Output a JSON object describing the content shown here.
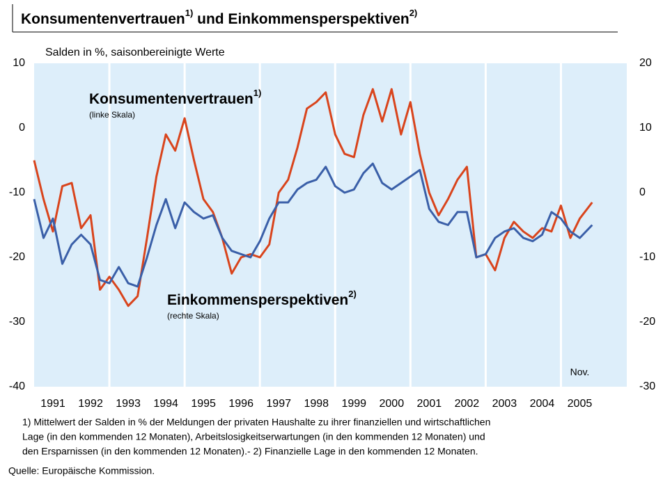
{
  "chart_data": {
    "type": "line",
    "title": [
      "Konsumentenvertrauen",
      "1)",
      " und Einkommensperspektiven",
      "2)"
    ],
    "subtitle": "Salden in %, saisonbereinigte Werte",
    "annotation": "Nov.",
    "x": [
      1991,
      1991.25,
      1991.5,
      1991.75,
      1992,
      1992.25,
      1992.5,
      1992.75,
      1993,
      1993.25,
      1993.5,
      1993.75,
      1994,
      1994.25,
      1994.5,
      1994.75,
      1995,
      1995.25,
      1995.5,
      1995.75,
      1996,
      1996.25,
      1996.5,
      1996.75,
      1997,
      1997.25,
      1997.5,
      1997.75,
      1998,
      1998.25,
      1998.5,
      1998.75,
      1999,
      1999.25,
      1999.5,
      1999.75,
      2000,
      2000.25,
      2000.5,
      2000.75,
      2001,
      2001.25,
      2001.5,
      2001.75,
      2002,
      2002.25,
      2002.5,
      2002.75,
      2003,
      2003.25,
      2003.5,
      2003.75,
      2004,
      2004.25,
      2004.5,
      2004.75,
      2005,
      2005.25,
      2005.5,
      2005.83
    ],
    "xlim": [
      1991,
      2006.75
    ],
    "xticks": [
      {
        "value": 1991.5,
        "label": "1991"
      },
      {
        "value": 1992.5,
        "label": "1992"
      },
      {
        "value": 1993.5,
        "label": "1993"
      },
      {
        "value": 1994.5,
        "label": "1994"
      },
      {
        "value": 1995.5,
        "label": "1995"
      },
      {
        "value": 1996.5,
        "label": "1996"
      },
      {
        "value": 1997.5,
        "label": "1997"
      },
      {
        "value": 1998.5,
        "label": "1998"
      },
      {
        "value": 1999.5,
        "label": "1999"
      },
      {
        "value": 2000.5,
        "label": "2000"
      },
      {
        "value": 2001.5,
        "label": "2001"
      },
      {
        "value": 2002.5,
        "label": "2002"
      },
      {
        "value": 2003.5,
        "label": "2003"
      },
      {
        "value": 2004.5,
        "label": "2004"
      },
      {
        "value": 2005.5,
        "label": "2005"
      }
    ],
    "ylim": [
      -40,
      10
    ],
    "yticks": [
      10,
      0,
      -10,
      -20,
      -30,
      -40
    ],
    "y2lim": [
      -30,
      20
    ],
    "y2ticks": [
      20,
      10,
      0,
      -10,
      -20,
      -30
    ],
    "background": "#ddeefa",
    "series": [
      {
        "name": "Konsumentenvertrauen",
        "note": "1)",
        "scale": "(linke Skala)",
        "color": "#d9441c",
        "values": [
          -5,
          -11,
          -16,
          -9,
          -8.5,
          -15.5,
          -13.5,
          -25,
          -23,
          -25,
          -27.5,
          -26,
          -17,
          -7.5,
          -1,
          -3.5,
          1.5,
          -5,
          -11,
          -13,
          -17,
          -22.5,
          -20,
          -19.5,
          -20,
          -18,
          -10,
          -8,
          -3,
          3,
          4,
          5.5,
          -1,
          -4,
          -4.5,
          2,
          6,
          1,
          6,
          -1,
          4,
          -4,
          -10,
          -13.5,
          -11,
          -8,
          -6,
          -20,
          -19.5,
          -22,
          -17,
          -14.5,
          -16,
          -17,
          -15.5,
          -16,
          -12,
          -17,
          -14,
          -11.5
        ]
      },
      {
        "name": "Einkommensperspektiven",
        "note": "2)",
        "scale": "(rechte Skala)",
        "color": "#3a5fa8",
        "axis": "y2",
        "values": [
          -1,
          -7,
          -4,
          -11,
          -8,
          -6.5,
          -8,
          -13.5,
          -14,
          -11.5,
          -14,
          -14.5,
          -10,
          -5,
          -1,
          -5.5,
          -1.5,
          -3,
          -4,
          -3.5,
          -7,
          -9,
          -9.5,
          -10,
          -7.5,
          -4,
          -1.5,
          -1.5,
          0.5,
          1.5,
          2,
          4,
          1,
          0,
          0.5,
          3,
          4.5,
          1.5,
          0.5,
          1.5,
          2.5,
          3.5,
          -2.5,
          -4.5,
          -5,
          -3,
          -3,
          -10,
          -9.5,
          -7,
          -6,
          -5.5,
          -7,
          -7.5,
          -6.5,
          -3,
          -4,
          -6,
          -7,
          -5
        ]
      }
    ],
    "footnotes": [
      "1) Mittelwert der Salden in % der Meldungen der privaten Haushalte zu ihrer finanziellen und wirtschaftlichen",
      "Lage (in den kommenden 12 Monaten), Arbeitslosigkeitserwartungen (in den kommenden 12 Monaten) und",
      "den Ersparnissen (in den kommenden 12 Monaten).- 2) Finanzielle Lage in den kommenden 12 Monaten."
    ],
    "source": "Quelle: Europäische Kommission."
  }
}
